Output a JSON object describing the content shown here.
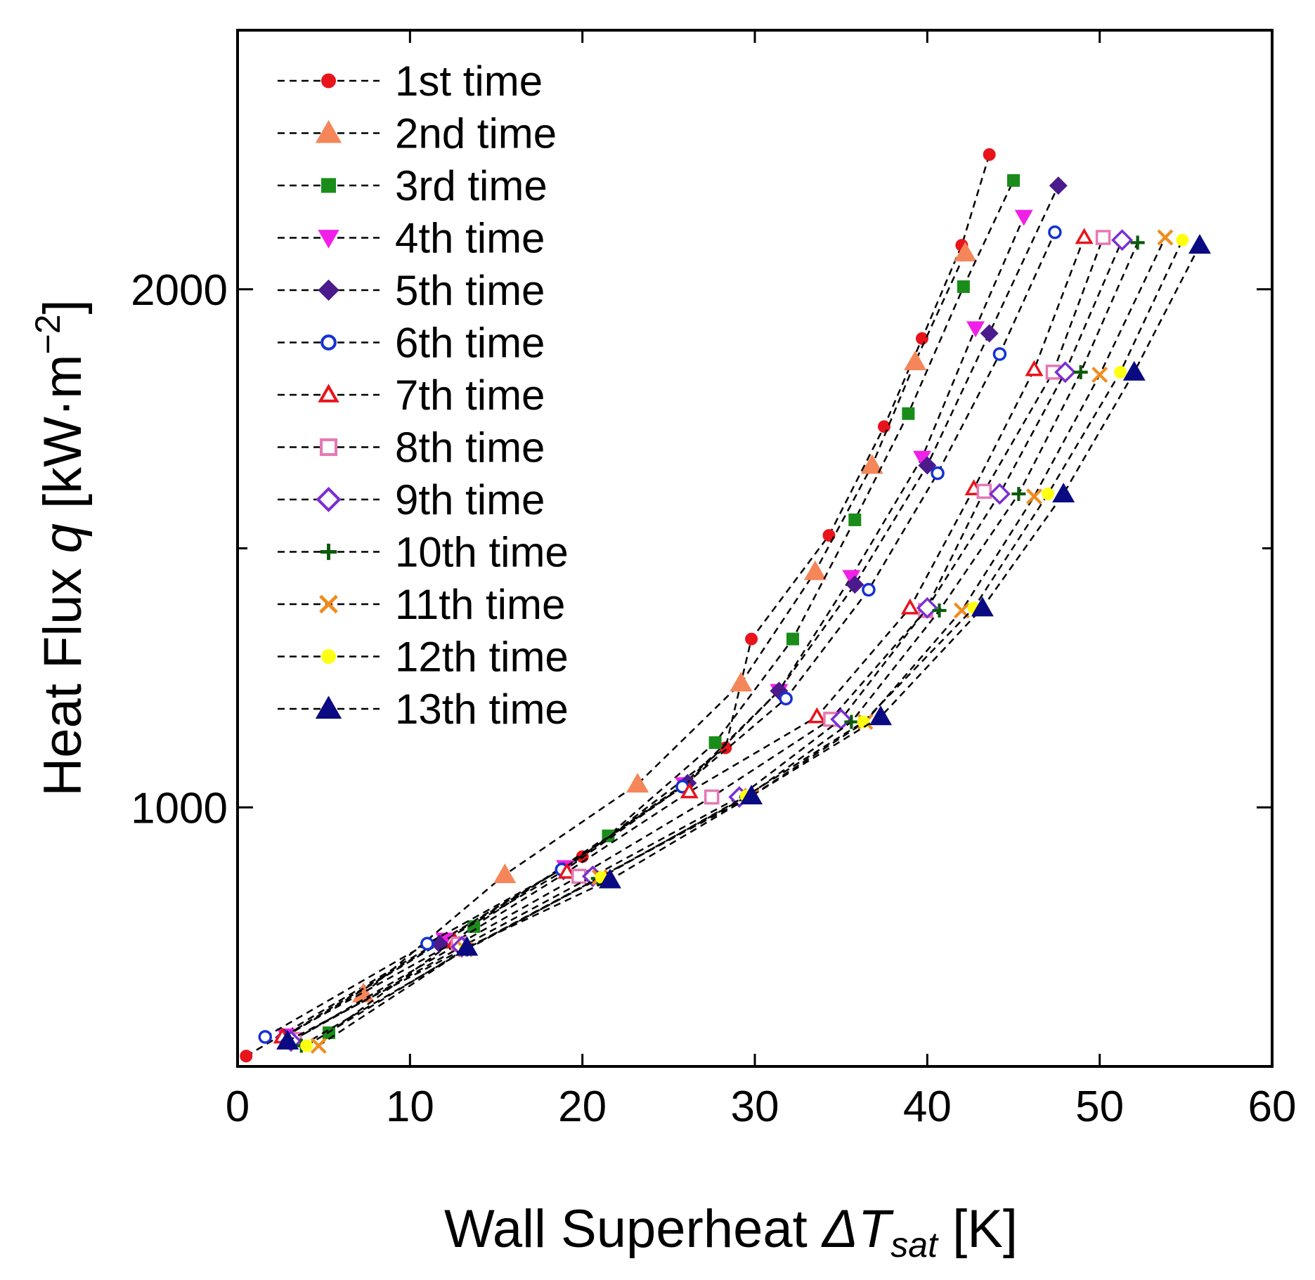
{
  "chart_data": {
    "type": "line",
    "title": "",
    "xlabel": "Wall Superheat ΔTsat [K]",
    "xlabel_parts": {
      "prefix": "Wall Superheat ",
      "delta": "Δ",
      "symbol": "T",
      "subscript": "sat",
      "suffix": " [K]"
    },
    "ylabel": "Heat Flux q [kW·m−2]",
    "ylabel_parts": {
      "prefix": "Heat Flux ",
      "symbol": "q",
      "unit": " [kW·m",
      "exponent": "−2",
      "close": "]"
    },
    "xlim": [
      0,
      60
    ],
    "ylim": [
      500,
      2500
    ],
    "xticks": [
      "0",
      "10",
      "20",
      "30",
      "40",
      "50",
      "60"
    ],
    "xtick_values": [
      0,
      10,
      20,
      30,
      40,
      50,
      60
    ],
    "yticks": [
      "1000",
      "2000"
    ],
    "ytick_values": [
      1000,
      2000
    ],
    "minor_ytick_values": [
      1500
    ],
    "line_style": "dashed",
    "legend_position": "top-left",
    "series": [
      {
        "name": "1st time",
        "marker": "circle-filled",
        "color": "#e8141c",
        "x": [
          0.5,
          20,
          28.3,
          29.8,
          34.3,
          37.5,
          39.7,
          42,
          43.6
        ],
        "y": [
          520,
          905,
          1115,
          1325,
          1525,
          1735,
          1905,
          2085,
          2260
        ]
      },
      {
        "name": "2nd time",
        "marker": "triangle-up-filled",
        "color": "#f4865a",
        "x": [
          7.3,
          15.5,
          23.2,
          29.2,
          33.5,
          36.8,
          39.3,
          42.2
        ],
        "y": [
          640,
          870,
          1045,
          1240,
          1455,
          1660,
          1860,
          2070
        ]
      },
      {
        "name": "3rd time",
        "marker": "square-filled",
        "color": "#1a8c1a",
        "x": [
          5.3,
          13.7,
          21.5,
          27.7,
          32.2,
          35.8,
          38.9,
          42.1,
          45
        ],
        "y": [
          565,
          770,
          945,
          1125,
          1325,
          1555,
          1760,
          2005,
          2210
        ]
      },
      {
        "name": "4th time",
        "marker": "triangle-down-filled",
        "color": "#f020e8",
        "x": [
          2.8,
          12,
          19,
          25.9,
          31.4,
          35.6,
          39.7,
          42.8,
          45.6
        ],
        "y": [
          560,
          745,
          885,
          1045,
          1225,
          1445,
          1675,
          1925,
          2140
        ]
      },
      {
        "name": "5th time",
        "marker": "diamond-filled",
        "color": "#4b1a8c",
        "x": [
          2.7,
          11.7,
          18.9,
          26.1,
          31.4,
          35.8,
          40,
          43.6,
          47.6
        ],
        "y": [
          556,
          737,
          877,
          1047,
          1225,
          1430,
          1660,
          1915,
          2200
        ]
      },
      {
        "name": "6th time",
        "marker": "circle-open",
        "color": "#1432d2",
        "x": [
          1.6,
          11,
          18.8,
          25.8,
          31.8,
          36.6,
          40.6,
          44.2,
          47.4
        ],
        "y": [
          557,
          737,
          880,
          1040,
          1210,
          1420,
          1645,
          1875,
          2110
        ]
      },
      {
        "name": "7th time",
        "marker": "triangle-up-open",
        "color": "#e8141c",
        "x": [
          2.6,
          12.6,
          19.1,
          26.2,
          33.6,
          39,
          42.7,
          46.2,
          49.1
        ],
        "y": [
          557,
          740,
          875,
          1030,
          1175,
          1385,
          1615,
          1845,
          2100
        ]
      },
      {
        "name": "8th time",
        "marker": "square-open",
        "color": "#e678b4",
        "x": [
          3.3,
          12.8,
          19.8,
          27.5,
          34.4,
          39.9,
          43.3,
          47.3,
          50.2
        ],
        "y": [
          552,
          736,
          867,
          1020,
          1170,
          1380,
          1610,
          1840,
          2100
        ]
      },
      {
        "name": "9th time",
        "marker": "diamond-open",
        "color": "#7a2ed2",
        "x": [
          3.1,
          13,
          20.6,
          29.1,
          35,
          40,
          44.2,
          48,
          51.3
        ],
        "y": [
          549,
          731,
          867,
          1020,
          1170,
          1385,
          1605,
          1840,
          2095
        ]
      },
      {
        "name": "10th time",
        "marker": "plus",
        "color": "#0a5a0a",
        "x": [
          3.7,
          13.3,
          20.9,
          29.5,
          35.6,
          40.7,
          45.3,
          48.9,
          52.2
        ],
        "y": [
          540,
          726,
          863,
          1020,
          1165,
          1380,
          1605,
          1840,
          2090
        ]
      },
      {
        "name": "11th time",
        "marker": "cross",
        "color": "#f08c1e",
        "x": [
          4.7,
          13.2,
          21,
          29.8,
          36.4,
          42,
          46.2,
          50,
          53.8
        ],
        "y": [
          540,
          726,
          865,
          1022,
          1165,
          1380,
          1600,
          1835,
          2100
        ]
      },
      {
        "name": "12th time",
        "marker": "circle-filled",
        "color": "#ffff14",
        "x": [
          4,
          13.2,
          21.1,
          29.5,
          36.3,
          42.7,
          47,
          51.2,
          54.8
        ],
        "y": [
          540,
          726,
          865,
          1022,
          1165,
          1385,
          1605,
          1840,
          2095
        ]
      },
      {
        "name": "13th time",
        "marker": "triangle-up-filled",
        "color": "#0a0a82",
        "x": [
          2.9,
          13.3,
          21.6,
          29.8,
          37.3,
          43.2,
          47.9,
          52,
          55.8
        ],
        "y": [
          549,
          730,
          860,
          1022,
          1175,
          1385,
          1605,
          1840,
          2085
        ]
      }
    ]
  }
}
